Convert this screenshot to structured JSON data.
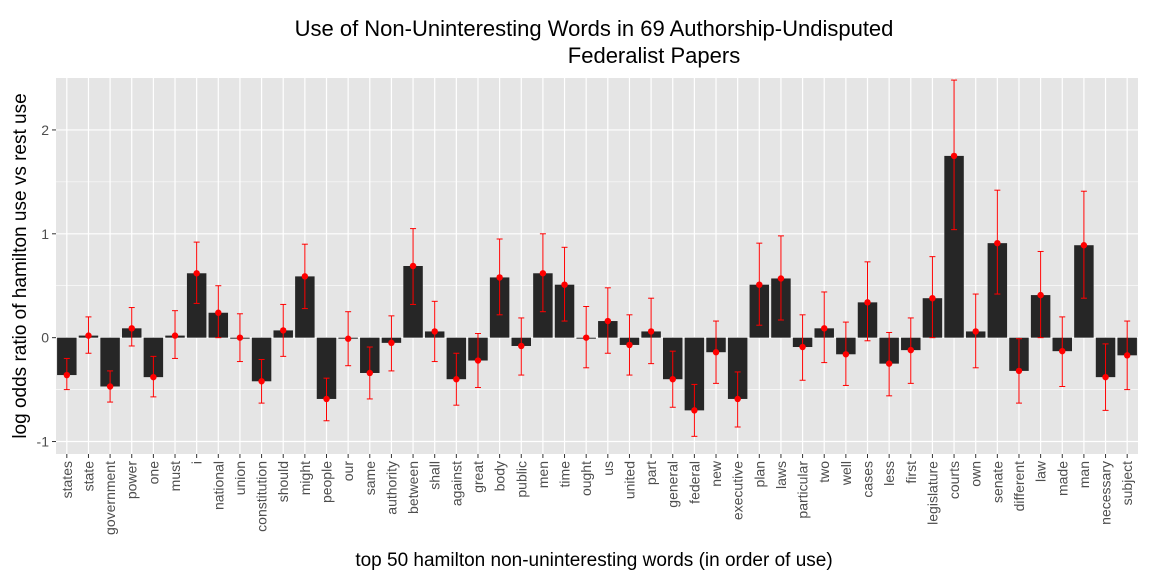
{
  "chart_data": {
    "type": "bar",
    "title_lines": [
      "Use of Non-Uninteresting Words in 69 Authorship-Undisputed",
      "Federalist Papers"
    ],
    "xlabel": "top 50 hamilton non-uninteresting words (in order of use)",
    "ylabel": "log odds ratio of hamilton use vs rest use",
    "ylim": [
      -1.12,
      2.5
    ],
    "yticks": [
      -1,
      0,
      1,
      2
    ],
    "ytick_labels": [
      "-1",
      "0",
      "1",
      "2"
    ],
    "grid": true,
    "colors": {
      "bar": "#262626",
      "point": "#ff0000",
      "errorbar": "#ff0000",
      "panel": "#e5e5e5",
      "grid": "#ffffff"
    },
    "categories": [
      "states",
      "state",
      "government",
      "power",
      "one",
      "must",
      "i",
      "national",
      "union",
      "constitution",
      "should",
      "might",
      "people",
      "our",
      "same",
      "authority",
      "between",
      "shall",
      "against",
      "great",
      "body",
      "public",
      "men",
      "time",
      "ought",
      "us",
      "united",
      "part",
      "general",
      "federal",
      "new",
      "executive",
      "plan",
      "laws",
      "particular",
      "two",
      "well",
      "cases",
      "less",
      "first",
      "legislature",
      "courts",
      "own",
      "senate",
      "different",
      "law",
      "made",
      "man",
      "necessary",
      "subject"
    ],
    "values": [
      -0.36,
      0.02,
      -0.47,
      0.09,
      -0.38,
      0.02,
      0.62,
      0.24,
      0.0,
      -0.42,
      0.07,
      0.59,
      -0.59,
      -0.01,
      -0.34,
      -0.05,
      0.69,
      0.06,
      -0.4,
      -0.22,
      0.58,
      -0.08,
      0.62,
      0.51,
      0.0,
      0.16,
      -0.07,
      0.06,
      -0.4,
      -0.7,
      -0.14,
      -0.59,
      0.51,
      0.57,
      -0.09,
      0.09,
      -0.16,
      0.34,
      -0.25,
      -0.12,
      0.38,
      1.75,
      0.06,
      0.91,
      -0.32,
      0.41,
      -0.13,
      0.89,
      -0.38,
      -0.17
    ],
    "err_low": [
      -0.5,
      -0.15,
      -0.62,
      -0.08,
      -0.57,
      -0.2,
      0.33,
      0.0,
      -0.23,
      -0.63,
      -0.18,
      0.28,
      -0.8,
      -0.27,
      -0.59,
      -0.32,
      0.32,
      -0.23,
      -0.65,
      -0.48,
      0.22,
      -0.36,
      0.25,
      0.16,
      -0.29,
      -0.15,
      -0.36,
      -0.25,
      -0.67,
      -0.95,
      -0.44,
      -0.86,
      0.12,
      0.17,
      -0.41,
      -0.24,
      -0.46,
      -0.03,
      -0.56,
      -0.44,
      0.0,
      1.04,
      -0.29,
      0.42,
      -0.63,
      0.0,
      -0.47,
      0.38,
      -0.7,
      -0.5
    ],
    "err_high": [
      -0.2,
      0.2,
      -0.32,
      0.29,
      -0.18,
      0.26,
      0.92,
      0.5,
      0.23,
      -0.21,
      0.32,
      0.9,
      -0.39,
      0.25,
      -0.09,
      0.21,
      1.05,
      0.35,
      -0.15,
      0.04,
      0.95,
      0.19,
      1.0,
      0.87,
      0.3,
      0.48,
      0.22,
      0.38,
      -0.13,
      -0.45,
      0.16,
      -0.33,
      0.91,
      0.98,
      0.22,
      0.44,
      0.15,
      0.73,
      0.05,
      0.19,
      0.78,
      2.48,
      0.42,
      1.42,
      -0.01,
      0.83,
      0.2,
      1.41,
      -0.06,
      0.16
    ]
  }
}
